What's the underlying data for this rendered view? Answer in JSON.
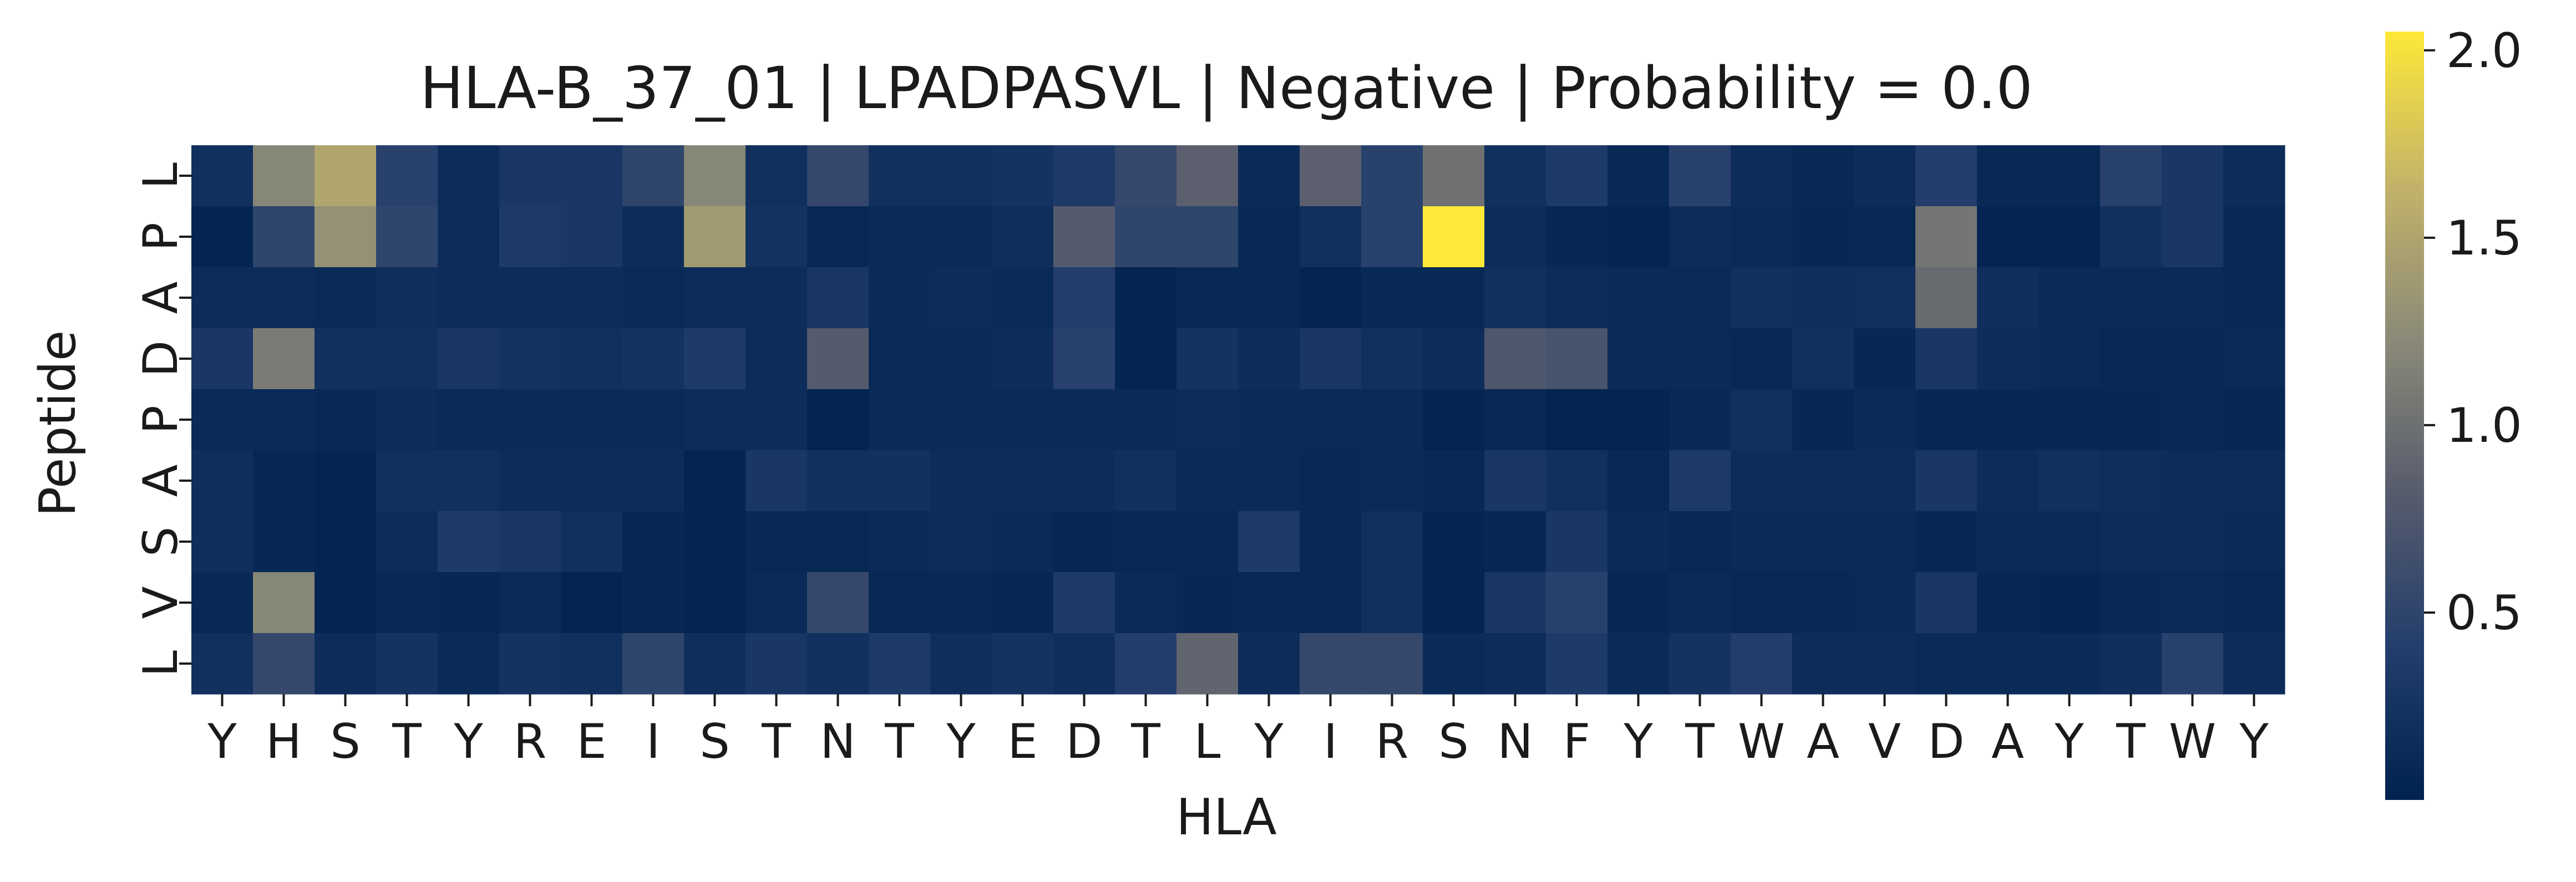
{
  "chart_data": {
    "type": "heatmap",
    "title": "HLA-B_37_01 | LPADPASVL | Negative | Probability = 0.0",
    "xlabel": "HLA",
    "ylabel": "Peptide",
    "x_categories": [
      "Y",
      "H",
      "S",
      "T",
      "Y",
      "R",
      "E",
      "I",
      "S",
      "T",
      "N",
      "T",
      "Y",
      "E",
      "D",
      "T",
      "L",
      "Y",
      "I",
      "R",
      "S",
      "N",
      "F",
      "Y",
      "T",
      "W",
      "A",
      "V",
      "D",
      "A",
      "Y",
      "T",
      "W",
      "Y"
    ],
    "y_categories": [
      "L",
      "P",
      "A",
      "D",
      "P",
      "A",
      "S",
      "V",
      "L"
    ],
    "values": [
      [
        0.2,
        1.2,
        1.5,
        0.45,
        0.15,
        0.3,
        0.3,
        0.5,
        1.2,
        0.2,
        0.55,
        0.2,
        0.2,
        0.25,
        0.35,
        0.55,
        0.85,
        0.12,
        0.85,
        0.45,
        1.0,
        0.2,
        0.35,
        0.1,
        0.45,
        0.15,
        0.1,
        0.15,
        0.4,
        0.1,
        0.1,
        0.45,
        0.3,
        0.15
      ],
      [
        0.05,
        0.5,
        1.3,
        0.5,
        0.15,
        0.35,
        0.3,
        0.15,
        1.4,
        0.25,
        0.1,
        0.12,
        0.12,
        0.18,
        0.8,
        0.5,
        0.5,
        0.1,
        0.2,
        0.45,
        2.05,
        0.15,
        0.08,
        0.05,
        0.15,
        0.12,
        0.08,
        0.1,
        1.05,
        0.05,
        0.05,
        0.2,
        0.3,
        0.1
      ],
      [
        0.15,
        0.15,
        0.12,
        0.18,
        0.15,
        0.15,
        0.15,
        0.12,
        0.15,
        0.15,
        0.3,
        0.12,
        0.15,
        0.12,
        0.4,
        0.05,
        0.1,
        0.1,
        0.05,
        0.1,
        0.1,
        0.2,
        0.15,
        0.12,
        0.12,
        0.2,
        0.18,
        0.2,
        0.95,
        0.18,
        0.12,
        0.12,
        0.12,
        0.1
      ],
      [
        0.3,
        1.1,
        0.2,
        0.2,
        0.3,
        0.25,
        0.2,
        0.25,
        0.35,
        0.15,
        0.8,
        0.12,
        0.12,
        0.15,
        0.45,
        0.05,
        0.25,
        0.15,
        0.3,
        0.2,
        0.15,
        0.75,
        0.7,
        0.12,
        0.12,
        0.1,
        0.2,
        0.08,
        0.3,
        0.15,
        0.12,
        0.1,
        0.1,
        0.12
      ],
      [
        0.12,
        0.12,
        0.1,
        0.15,
        0.12,
        0.12,
        0.12,
        0.12,
        0.15,
        0.15,
        0.05,
        0.12,
        0.12,
        0.12,
        0.12,
        0.12,
        0.15,
        0.12,
        0.12,
        0.12,
        0.05,
        0.1,
        0.05,
        0.05,
        0.1,
        0.2,
        0.08,
        0.12,
        0.08,
        0.08,
        0.08,
        0.08,
        0.1,
        0.08
      ],
      [
        0.18,
        0.08,
        0.05,
        0.2,
        0.2,
        0.15,
        0.15,
        0.15,
        0.05,
        0.3,
        0.2,
        0.22,
        0.15,
        0.15,
        0.15,
        0.2,
        0.12,
        0.12,
        0.1,
        0.12,
        0.1,
        0.3,
        0.2,
        0.1,
        0.35,
        0.15,
        0.15,
        0.15,
        0.3,
        0.15,
        0.2,
        0.18,
        0.15,
        0.15
      ],
      [
        0.18,
        0.08,
        0.05,
        0.15,
        0.35,
        0.3,
        0.2,
        0.08,
        0.05,
        0.1,
        0.1,
        0.12,
        0.15,
        0.12,
        0.08,
        0.1,
        0.1,
        0.35,
        0.1,
        0.2,
        0.05,
        0.08,
        0.3,
        0.12,
        0.1,
        0.12,
        0.12,
        0.12,
        0.08,
        0.12,
        0.12,
        0.15,
        0.15,
        0.12
      ],
      [
        0.1,
        1.2,
        0.05,
        0.1,
        0.08,
        0.12,
        0.05,
        0.08,
        0.05,
        0.12,
        0.55,
        0.1,
        0.1,
        0.08,
        0.35,
        0.12,
        0.08,
        0.1,
        0.1,
        0.2,
        0.05,
        0.3,
        0.45,
        0.08,
        0.12,
        0.1,
        0.1,
        0.12,
        0.3,
        0.08,
        0.06,
        0.1,
        0.12,
        0.1
      ],
      [
        0.2,
        0.55,
        0.15,
        0.25,
        0.12,
        0.25,
        0.2,
        0.5,
        0.18,
        0.3,
        0.2,
        0.35,
        0.18,
        0.25,
        0.18,
        0.4,
        0.9,
        0.15,
        0.55,
        0.55,
        0.12,
        0.15,
        0.35,
        0.12,
        0.25,
        0.4,
        0.15,
        0.15,
        0.12,
        0.12,
        0.12,
        0.18,
        0.45,
        0.15
      ]
    ],
    "colormap": "cividis",
    "color_range": [
      0.0,
      2.05
    ],
    "colorbar_ticks": [
      "0.5",
      "1.0",
      "1.5",
      "2.0"
    ],
    "colorbar_tick_values": [
      0.5,
      1.0,
      1.5,
      2.0
    ]
  }
}
